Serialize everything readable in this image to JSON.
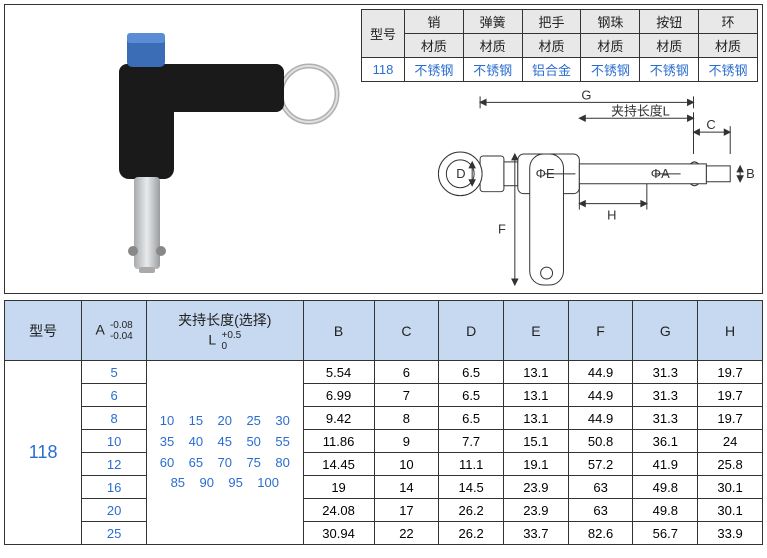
{
  "colors": {
    "border": "#333333",
    "header_bg": "#e8e8e8",
    "spec_header_bg": "#c7d9f0",
    "blue_text": "#2a6dd0",
    "black_text": "#222222",
    "handle_black": "#1a1a1a",
    "button_blue": "#3a6db5",
    "pin_gray": "#cfd2d4",
    "pin_dark": "#888888",
    "ring_gray": "#b0b0b0"
  },
  "material_table": {
    "row_label": "型号",
    "sub_label": "材质",
    "columns": [
      "销",
      "弹簧",
      "把手",
      "钢珠",
      "按钮",
      "环"
    ],
    "model": "118",
    "values": [
      "不锈钢",
      "不锈钢",
      "铝合金",
      "不锈钢",
      "不锈钢",
      "不锈钢"
    ]
  },
  "diagram_labels": {
    "G": "G",
    "L": "夹持长度L",
    "C": "C",
    "B": "B",
    "D": "D",
    "E": "ΦE",
    "A": "ΦA",
    "F": "F",
    "H": "H"
  },
  "spec_table": {
    "headers": {
      "model": "型号",
      "A": "A",
      "A_tol_top": "-0.08",
      "A_tol_bot": "-0.04",
      "L": "夹持长度(选择)",
      "L_sym": "L",
      "L_tol_top": "+0.5",
      "L_tol_bot": "0",
      "B": "B",
      "C": "C",
      "D": "D",
      "E": "E",
      "F": "F",
      "G": "G",
      "H": "H"
    },
    "model": "118",
    "A_values": [
      "5",
      "6",
      "8",
      "10",
      "12",
      "16",
      "20",
      "25"
    ],
    "L_options": "10  15  20  25  30\n35  40  45  50  55\n60  65  70  75  80\n85  90  95  100",
    "rows": [
      {
        "B": "5.54",
        "C": "6",
        "D": "6.5",
        "E": "13.1",
        "F": "44.9",
        "G": "31.3",
        "H": "19.7"
      },
      {
        "B": "6.99",
        "C": "7",
        "D": "6.5",
        "E": "13.1",
        "F": "44.9",
        "G": "31.3",
        "H": "19.7"
      },
      {
        "B": "9.42",
        "C": "8",
        "D": "6.5",
        "E": "13.1",
        "F": "44.9",
        "G": "31.3",
        "H": "19.7"
      },
      {
        "B": "11.86",
        "C": "9",
        "D": "7.7",
        "E": "15.1",
        "F": "50.8",
        "G": "36.1",
        "H": "24"
      },
      {
        "B": "14.45",
        "C": "10",
        "D": "11.1",
        "E": "19.1",
        "F": "57.2",
        "G": "41.9",
        "H": "25.8"
      },
      {
        "B": "19",
        "C": "14",
        "D": "14.5",
        "E": "23.9",
        "F": "63",
        "G": "49.8",
        "H": "30.1"
      },
      {
        "B": "24.08",
        "C": "17",
        "D": "26.2",
        "E": "23.9",
        "F": "63",
        "G": "49.8",
        "H": "30.1"
      },
      {
        "B": "30.94",
        "C": "22",
        "D": "26.2",
        "E": "33.7",
        "F": "82.6",
        "G": "56.7",
        "H": "33.9"
      }
    ]
  }
}
